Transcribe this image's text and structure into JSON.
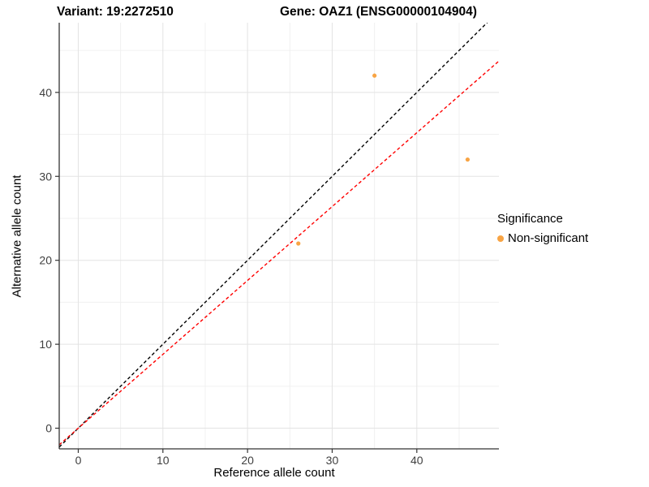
{
  "title": {
    "variant": "Variant: 19:2272510",
    "gene": "Gene: OAZ1 (ENSG00000104904)"
  },
  "legend": {
    "title": "Significance",
    "items": [
      {
        "label": "Non-significant",
        "color": "#F8A444"
      }
    ]
  },
  "chart_data": {
    "type": "scatter",
    "title": "Variant: 19:2272510   Gene: OAZ1 (ENSG00000104904)",
    "xlabel": "Reference allele count",
    "ylabel": "Alternative allele count",
    "xlim": [
      -2.25,
      49.7
    ],
    "ylim": [
      -2.46,
      48.3
    ],
    "x_ticks": [
      0,
      10,
      20,
      30,
      40
    ],
    "x_minor_ticks": [
      5,
      15,
      25,
      35,
      45
    ],
    "y_ticks": [
      0,
      10,
      20,
      30,
      40
    ],
    "y_minor_ticks": [
      5,
      15,
      25,
      35,
      45
    ],
    "grid": true,
    "legend_position": "right",
    "series": [
      {
        "name": "Non-significant",
        "color": "#F8A444",
        "points": [
          [
            35,
            42
          ],
          [
            46,
            32
          ],
          [
            26,
            22
          ]
        ]
      }
    ],
    "lines": [
      {
        "name": "identity-line",
        "slope": 1.0,
        "intercept": 0,
        "color": "#000000",
        "style": "dashed"
      },
      {
        "name": "fitted-ratio-line",
        "slope": 0.88,
        "intercept": 0,
        "color": "#FF0000",
        "style": "dashed"
      }
    ]
  },
  "colors": {
    "background": "#FFFFFF",
    "major_grid": "#E3E3E3",
    "minor_grid": "#F0F0F0",
    "axis_line": "#333333",
    "tick_text": "#404040",
    "point": "#F8A444",
    "identity_line": "#000000",
    "fitted_line": "#FF0000"
  }
}
